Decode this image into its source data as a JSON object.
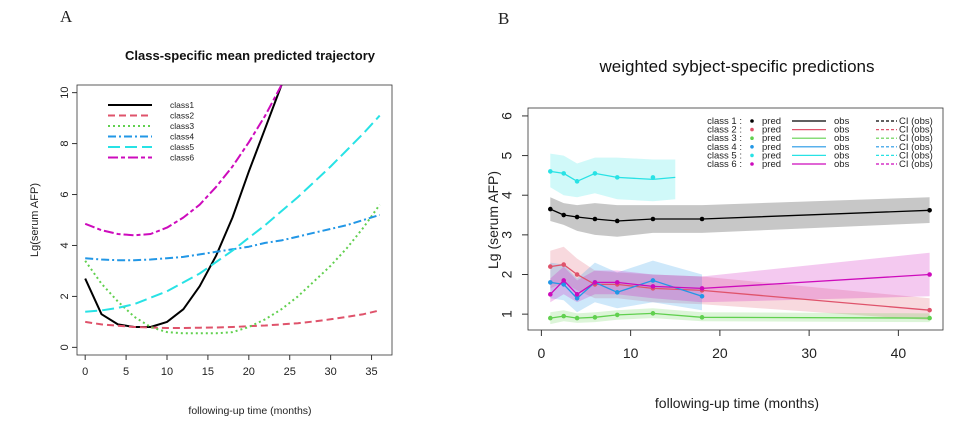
{
  "chart_data": [
    {
      "panel_label": "A",
      "type": "line",
      "title": "Class-specific mean predicted trajectory",
      "xlabel": "following-up time (months)",
      "ylabel": "Lg(serum AFP)",
      "xlim": [
        -1,
        37.5
      ],
      "ylim": [
        -0.3,
        10.3
      ],
      "xticks": [
        0,
        5,
        10,
        15,
        20,
        25,
        30,
        35
      ],
      "yticks": [
        0,
        2,
        4,
        6,
        8,
        10
      ],
      "legend_position": "top-left",
      "grid": false,
      "x": [
        0,
        2,
        4,
        6,
        8,
        10,
        12,
        14,
        16,
        18,
        20,
        22,
        24,
        26,
        28,
        30,
        32,
        34,
        36
      ],
      "series": [
        {
          "name": "class1",
          "color": "#000000",
          "dash": "solid",
          "values": [
            2.7,
            1.3,
            0.9,
            0.8,
            0.8,
            1.0,
            1.5,
            2.4,
            3.6,
            5.1,
            6.9,
            8.6,
            10.3,
            null,
            null,
            null,
            null,
            null,
            null
          ]
        },
        {
          "name": "class2",
          "color": "#df536b",
          "dash": "dashed",
          "values": [
            1.0,
            0.9,
            0.85,
            0.8,
            0.78,
            0.76,
            0.76,
            0.77,
            0.78,
            0.8,
            0.83,
            0.86,
            0.9,
            0.95,
            1.02,
            1.1,
            1.2,
            1.3,
            1.45
          ]
        },
        {
          "name": "class3",
          "color": "#61d04f",
          "dash": "dotted",
          "values": [
            3.4,
            2.5,
            1.8,
            1.2,
            0.8,
            0.6,
            0.55,
            0.55,
            0.55,
            0.6,
            0.8,
            1.1,
            1.5,
            2.0,
            2.6,
            3.2,
            3.9,
            4.7,
            5.6
          ]
        },
        {
          "name": "class4",
          "color": "#2297e6",
          "dash": "dashdot",
          "values": [
            3.5,
            3.45,
            3.42,
            3.42,
            3.45,
            3.5,
            3.55,
            3.65,
            3.75,
            3.85,
            3.95,
            4.1,
            4.2,
            4.35,
            4.5,
            4.65,
            4.8,
            5.0,
            5.2
          ]
        },
        {
          "name": "class5",
          "color": "#28e2e5",
          "dash": "longdash",
          "values": [
            1.4,
            1.45,
            1.55,
            1.7,
            1.95,
            2.2,
            2.55,
            2.9,
            3.35,
            3.8,
            4.3,
            4.8,
            5.35,
            5.9,
            6.5,
            7.1,
            7.75,
            8.4,
            9.1
          ]
        },
        {
          "name": "class6",
          "color": "#cd0bbc",
          "dash": "twodash",
          "values": [
            4.85,
            4.6,
            4.45,
            4.4,
            4.45,
            4.7,
            5.1,
            5.6,
            6.3,
            7.1,
            8.05,
            9.1,
            10.3,
            null,
            null,
            null,
            null,
            null,
            null
          ]
        }
      ]
    },
    {
      "panel_label": "B",
      "type": "line",
      "title": "weighted sybject-specific predictions",
      "xlabel": "following-up time (months)",
      "ylabel": "Lg (serum AFP)",
      "xlim": [
        -1.5,
        45
      ],
      "ylim": [
        0.6,
        6.2
      ],
      "xticks": [
        0,
        10,
        20,
        30,
        40
      ],
      "yticks": [
        1,
        2,
        3,
        4,
        5,
        6
      ],
      "legend_position": "top-right",
      "grid": false,
      "legend": {
        "columns": [
          "pred",
          "obs",
          "CI (obs)"
        ],
        "rows": [
          "class 1 :",
          "class 2 :",
          "class 3 :",
          "class 4 :",
          "class 5 :",
          "class 6 :"
        ]
      },
      "series": [
        {
          "name": "class 1",
          "color": "#000000",
          "pred": {
            "x": [
              1,
              2.5,
              4,
              6,
              8.5,
              12.5,
              18,
              43.5
            ],
            "y": [
              3.65,
              3.5,
              3.45,
              3.4,
              3.35,
              3.4,
              3.4,
              3.62
            ]
          },
          "obs": {
            "x": [
              1,
              2.5,
              4,
              6,
              8.5,
              12.5,
              18,
              43.5
            ],
            "y": [
              3.65,
              3.5,
              3.45,
              3.4,
              3.35,
              3.4,
              3.4,
              3.62
            ]
          },
          "ci_lower": [
            3.35,
            3.25,
            3.1,
            3.0,
            2.95,
            3.05,
            3.05,
            3.3
          ],
          "ci_upper": [
            3.95,
            3.8,
            3.75,
            3.8,
            3.75,
            3.75,
            3.75,
            3.95
          ]
        },
        {
          "name": "class 2",
          "color": "#df536b",
          "pred": {
            "x": [
              1,
              2.5,
              4,
              6,
              8.5,
              12.5,
              18,
              43.5
            ],
            "y": [
              2.2,
              2.25,
              2.0,
              1.75,
              1.75,
              1.65,
              1.6,
              1.1
            ]
          },
          "obs": {
            "x": [
              1,
              2.5,
              4,
              6,
              8.5,
              12.5,
              18,
              43.5
            ],
            "y": [
              2.2,
              2.25,
              2.0,
              1.75,
              1.75,
              1.65,
              1.6,
              1.1
            ]
          },
          "ci_lower": [
            1.65,
            1.8,
            1.6,
            1.4,
            1.4,
            1.3,
            1.25,
            0.85
          ],
          "ci_upper": [
            2.6,
            2.7,
            2.4,
            2.1,
            2.05,
            2.0,
            1.95,
            1.4
          ]
        },
        {
          "name": "class 3",
          "color": "#61d04f",
          "pred": {
            "x": [
              1,
              2.5,
              4,
              6,
              8.5,
              12.5,
              18,
              43.5
            ],
            "y": [
              0.9,
              0.95,
              0.9,
              0.92,
              0.98,
              1.02,
              0.92,
              0.9
            ]
          },
          "obs": {
            "x": [
              1,
              2.5,
              4,
              6,
              8.5,
              12.5,
              18,
              43.5
            ],
            "y": [
              0.9,
              0.95,
              0.9,
              0.92,
              0.98,
              1.02,
              0.92,
              0.9
            ]
          },
          "ci_lower": [
            0.75,
            0.82,
            0.78,
            0.8,
            0.86,
            0.9,
            0.82,
            0.8
          ],
          "ci_upper": [
            1.05,
            1.1,
            1.02,
            1.05,
            1.1,
            1.15,
            1.05,
            1.02
          ]
        },
        {
          "name": "class 4",
          "color": "#2297e6",
          "pred": {
            "x": [
              1,
              2.5,
              4,
              6,
              8.5,
              12.5,
              18
            ],
            "y": [
              1.8,
              1.75,
              1.4,
              1.8,
              1.55,
              1.85,
              1.45
            ]
          },
          "obs": {
            "x": [
              1,
              2.5,
              4,
              6,
              8.5,
              12.5,
              18
            ],
            "y": [
              1.8,
              1.75,
              1.4,
              1.8,
              1.55,
              1.85,
              1.45
            ]
          },
          "ci_lower": [
            1.4,
            1.35,
            1.05,
            1.3,
            1.15,
            1.3,
            1.1
          ],
          "ci_upper": [
            2.3,
            2.25,
            1.9,
            2.3,
            2.05,
            2.35,
            2.0
          ]
        },
        {
          "name": "class 5",
          "color": "#28e2e5",
          "pred": {
            "x": [
              1,
              2.5,
              4,
              6,
              8.5,
              12.5
            ],
            "y": [
              4.6,
              4.55,
              4.35,
              4.55,
              4.45,
              4.45
            ]
          },
          "obs": {
            "x": [
              1,
              2.5,
              4,
              6,
              8.5,
              12.5,
              15
            ],
            "y": [
              4.6,
              4.55,
              4.35,
              4.55,
              4.45,
              4.4,
              4.45
            ]
          },
          "ci_lower": [
            4.2,
            4.0,
            3.95,
            4.05,
            3.9,
            3.85,
            3.9
          ],
          "ci_upper": [
            5.05,
            5.0,
            4.8,
            4.95,
            4.95,
            4.9,
            4.9
          ]
        },
        {
          "name": "class 6",
          "color": "#cd0bbc",
          "pred": {
            "x": [
              1,
              2.5,
              4,
              6,
              8.5,
              12.5,
              18,
              43.5
            ],
            "y": [
              1.5,
              1.85,
              1.5,
              1.8,
              1.8,
              1.7,
              1.65,
              2.0
            ]
          },
          "obs": {
            "x": [
              1,
              2.5,
              4,
              6,
              8.5,
              12.5,
              18,
              43.5
            ],
            "y": [
              1.5,
              1.85,
              1.5,
              1.8,
              1.8,
              1.7,
              1.65,
              2.0
            ]
          },
          "ci_lower": [
            1.3,
            1.5,
            1.3,
            1.5,
            1.5,
            1.4,
            1.3,
            1.45
          ],
          "ci_upper": [
            1.9,
            2.2,
            1.85,
            2.1,
            2.1,
            2.0,
            1.95,
            2.55
          ]
        }
      ]
    }
  ]
}
